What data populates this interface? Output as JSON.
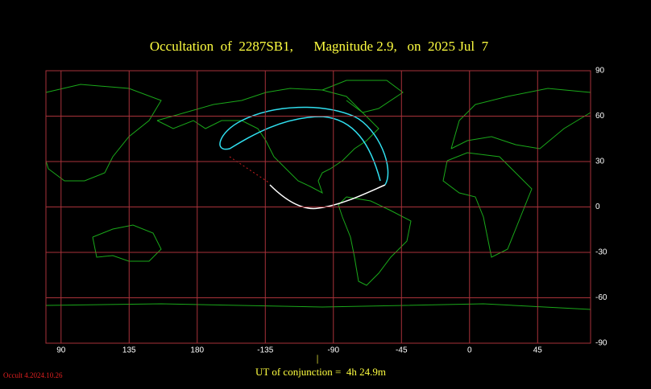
{
  "header": {
    "title": "Occultation  of  2287SB1,      Magnitude 2.9,   on  2025 Jul  7"
  },
  "map": {
    "lon_ticks": [
      90,
      135,
      180,
      -135,
      -90,
      -45,
      0,
      45
    ],
    "lat_ticks": [
      90,
      60,
      30,
      0,
      -30,
      -60,
      -90
    ]
  },
  "footer": {
    "marker": "|",
    "conjunction": "UT of conjunction =  4h 24.9m",
    "version": "Occult 4.2024.10.26"
  }
}
